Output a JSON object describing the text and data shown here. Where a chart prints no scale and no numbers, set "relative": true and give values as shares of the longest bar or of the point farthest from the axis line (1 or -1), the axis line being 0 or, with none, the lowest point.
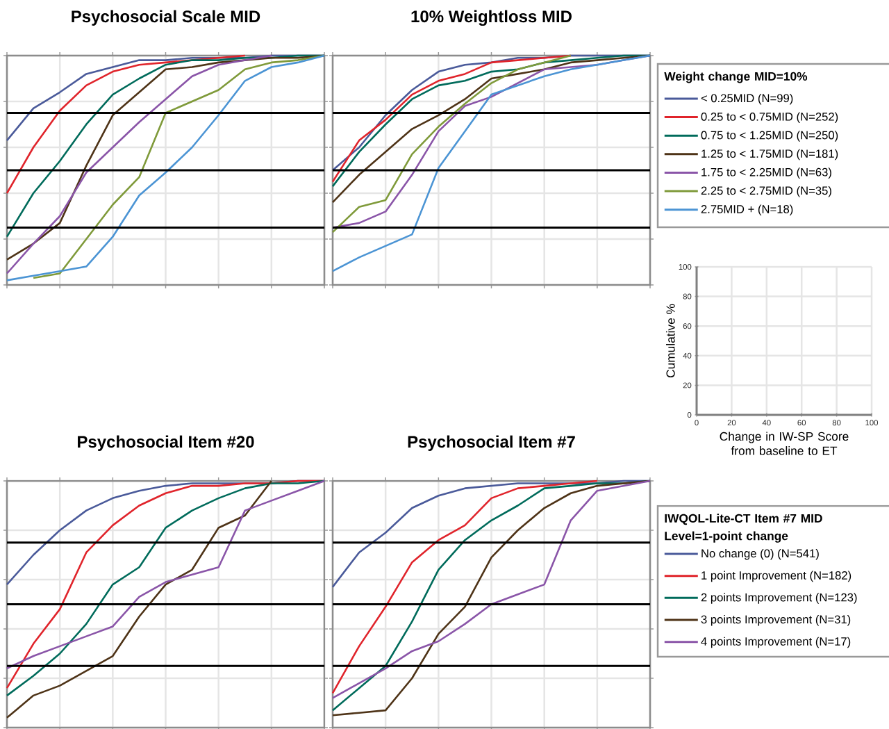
{
  "chart_data": [
    {
      "type": "line",
      "title": "Psychosocial Scale MID",
      "relative": true,
      "categories": [
        null,
        null,
        null,
        null,
        null,
        null,
        null,
        null,
        null,
        null,
        null,
        null,
        null
      ],
      "grid": true,
      "marker": "none",
      "line_style": "solid",
      "ref_lines": [
        {
          "axis": "y",
          "value": 0.25
        },
        {
          "axis": "y",
          "value": 0.5
        },
        {
          "axis": "y",
          "value": 0.75
        }
      ],
      "series": [
        {
          "color": "#4a5a9a",
          "values": [
            0.63,
            0.77,
            0.84,
            0.92,
            0.95,
            0.98,
            0.98,
            0.99,
            0.99,
            0.99,
            1,
            1,
            1
          ]
        },
        {
          "color": "#e0242b",
          "values": [
            0.4,
            0.6,
            0.76,
            0.87,
            0.93,
            0.96,
            0.97,
            0.98,
            0.99,
            1,
            null,
            null,
            null
          ]
        },
        {
          "color": "#006b5b",
          "values": [
            0.21,
            0.4,
            0.54,
            0.7,
            0.83,
            0.9,
            0.96,
            0.98,
            0.98,
            0.99,
            0.99,
            1,
            1
          ]
        },
        {
          "color": "#4e3317",
          "values": [
            0.11,
            0.18,
            0.27,
            0.52,
            0.74,
            0.84,
            0.94,
            0.95,
            0.97,
            0.98,
            0.99,
            0.99,
            1
          ]
        },
        {
          "color": "#8a55a8",
          "values": [
            0.05,
            0.18,
            0.3,
            0.49,
            0.6,
            0.71,
            0.81,
            0.91,
            0.96,
            0.98,
            1,
            null,
            null
          ]
        },
        {
          "color": "#7f9a3a",
          "values": [
            null,
            0.03,
            0.05,
            0.2,
            0.35,
            0.47,
            0.75,
            0.8,
            0.85,
            0.94,
            0.97,
            0.98,
            1
          ]
        },
        {
          "color": "#4b94d4",
          "values": [
            0.02,
            0.04,
            0.06,
            0.08,
            0.21,
            0.39,
            0.49,
            0.6,
            0.74,
            0.89,
            0.95,
            0.97,
            1
          ]
        }
      ]
    },
    {
      "type": "line",
      "title": "10% Weightloss MID",
      "relative": true,
      "categories": [
        null,
        null,
        null,
        null,
        null,
        null,
        null,
        null,
        null,
        null,
        null,
        null,
        null
      ],
      "grid": true,
      "marker": "none",
      "line_style": "solid",
      "legend": "right",
      "legend_title": "Weight change MID=10%",
      "ref_lines": [
        {
          "axis": "y",
          "value": 0.25
        },
        {
          "axis": "y",
          "value": 0.5
        },
        {
          "axis": "y",
          "value": 0.75
        }
      ],
      "series": [
        {
          "name": "< 0.25MID (N=99)",
          "color": "#4a5a9a",
          "values": [
            0.5,
            0.6,
            0.74,
            0.85,
            0.93,
            0.96,
            0.97,
            0.99,
            0.99,
            1,
            1,
            1,
            1
          ]
        },
        {
          "name": "0.25 to < 0.75MID (N=252)",
          "color": "#e0242b",
          "values": [
            0.45,
            0.63,
            0.72,
            0.83,
            0.89,
            0.92,
            0.97,
            0.98,
            0.99,
            1,
            null,
            null,
            null
          ]
        },
        {
          "name": "0.75 to < 1.25MID (N=250)",
          "color": "#006b5b",
          "values": [
            0.43,
            0.58,
            0.7,
            0.81,
            0.87,
            0.89,
            0.93,
            0.94,
            0.97,
            0.98,
            0.99,
            1,
            1
          ]
        },
        {
          "name": "1.25 to < 1.75MID (N=181)",
          "color": "#4e3317",
          "values": [
            0.36,
            0.48,
            0.58,
            0.68,
            0.74,
            0.81,
            0.9,
            0.92,
            0.94,
            0.97,
            0.98,
            0.99,
            1
          ]
        },
        {
          "name": "1.75 to < 2.25MID (N=63)",
          "color": "#8a55a8",
          "values": [
            0.25,
            0.27,
            0.32,
            0.48,
            0.67,
            0.78,
            0.82,
            0.88,
            0.94,
            0.95,
            0.96,
            0.98,
            1
          ]
        },
        {
          "name": "2.25 to < 2.75MID (N=35)",
          "color": "#7f9a3a",
          "values": [
            0.23,
            0.34,
            0.37,
            0.57,
            0.69,
            0.79,
            0.88,
            0.94,
            0.97,
            1,
            null,
            null,
            null
          ]
        },
        {
          "name": "2.75MID + (N=18)",
          "color": "#4b94d4",
          "values": [
            0.06,
            0.12,
            0.17,
            0.22,
            0.51,
            0.67,
            0.83,
            0.87,
            0.91,
            0.94,
            0.96,
            0.98,
            1
          ]
        }
      ]
    },
    {
      "type": "line",
      "title": "Psychosocial Item #20",
      "relative": true,
      "categories": [
        null,
        null,
        null,
        null,
        null,
        null,
        null,
        null,
        null,
        null,
        null,
        null,
        null
      ],
      "grid": true,
      "marker": "none",
      "line_style": "solid",
      "ref_lines": [
        {
          "axis": "y",
          "value": 0.25
        },
        {
          "axis": "y",
          "value": 0.5
        },
        {
          "axis": "y",
          "value": 0.75
        }
      ],
      "series": [
        {
          "color": "#4a5a9a",
          "values": [
            0.58,
            0.7,
            0.8,
            0.88,
            0.93,
            0.96,
            0.98,
            0.99,
            0.99,
            0.99,
            0.99,
            1,
            1
          ]
        },
        {
          "color": "#e0242b",
          "values": [
            0.16,
            0.34,
            0.48,
            0.71,
            0.82,
            0.9,
            0.95,
            0.98,
            0.98,
            0.99,
            0.99,
            1,
            1
          ]
        },
        {
          "color": "#006b5b",
          "values": [
            0.13,
            0.21,
            0.3,
            0.42,
            0.58,
            0.65,
            0.81,
            0.88,
            0.93,
            0.97,
            0.99,
            0.99,
            1
          ]
        },
        {
          "color": "#4e3317",
          "values": [
            0.04,
            0.13,
            0.17,
            0.23,
            0.29,
            0.45,
            0.58,
            0.64,
            0.81,
            0.86,
            1,
            null,
            null
          ]
        },
        {
          "color": "#8a55a8",
          "values": [
            0.24,
            0.29,
            0.33,
            0.37,
            0.41,
            0.53,
            0.59,
            0.62,
            0.65,
            0.88,
            0.92,
            0.96,
            1
          ]
        }
      ]
    },
    {
      "type": "line",
      "title": "Psychosocial Item #7",
      "relative": true,
      "categories": [
        null,
        null,
        null,
        null,
        null,
        null,
        null,
        null,
        null,
        null,
        null,
        null,
        null
      ],
      "grid": true,
      "marker": "none",
      "line_style": "solid",
      "legend": "right",
      "legend_title": "IWQOL-Lite-CT Item #7 MID Level=1-point change",
      "ref_lines": [
        {
          "axis": "y",
          "value": 0.25
        },
        {
          "axis": "y",
          "value": 0.5
        },
        {
          "axis": "y",
          "value": 0.75
        }
      ],
      "series": [
        {
          "name": "No change (0) (N=541)",
          "color": "#4a5a9a",
          "values": [
            0.57,
            0.71,
            0.79,
            0.89,
            0.94,
            0.97,
            0.98,
            0.99,
            0.99,
            0.99,
            0.99,
            1,
            1
          ]
        },
        {
          "name": "1 point Improvement (N=182)",
          "color": "#e0242b",
          "values": [
            0.14,
            0.33,
            0.49,
            0.67,
            0.76,
            0.82,
            0.93,
            0.97,
            0.98,
            0.99,
            1,
            null,
            null
          ]
        },
        {
          "name": "2 points Improvement (N=123)",
          "color": "#006b5b",
          "values": [
            0.07,
            0.16,
            0.25,
            0.43,
            0.64,
            0.76,
            0.84,
            0.9,
            0.97,
            0.98,
            0.99,
            0.99,
            1
          ]
        },
        {
          "name": "3 points Improvement (N=31)",
          "color": "#4e3317",
          "values": [
            0.05,
            0.06,
            0.07,
            0.2,
            0.38,
            0.49,
            0.69,
            0.8,
            0.89,
            0.95,
            0.98,
            0.99,
            1
          ]
        },
        {
          "name": "4 points Improvement (N=17)",
          "color": "#8a55a8",
          "values": [
            0.12,
            0.18,
            0.24,
            0.31,
            0.35,
            0.42,
            0.5,
            0.54,
            0.58,
            0.84,
            0.96,
            0.98,
            1
          ]
        }
      ]
    },
    {
      "type": "line",
      "xlabel": "Change in IW-SP Score from baseline to ET",
      "ylabel": "Cumulative %",
      "xlim": [
        0,
        100
      ],
      "ylim": [
        0,
        100
      ],
      "xticks": [
        0,
        20,
        40,
        60,
        80,
        100
      ],
      "yticks": [
        0,
        20,
        40,
        60,
        80,
        100
      ],
      "grid": true
    }
  ]
}
